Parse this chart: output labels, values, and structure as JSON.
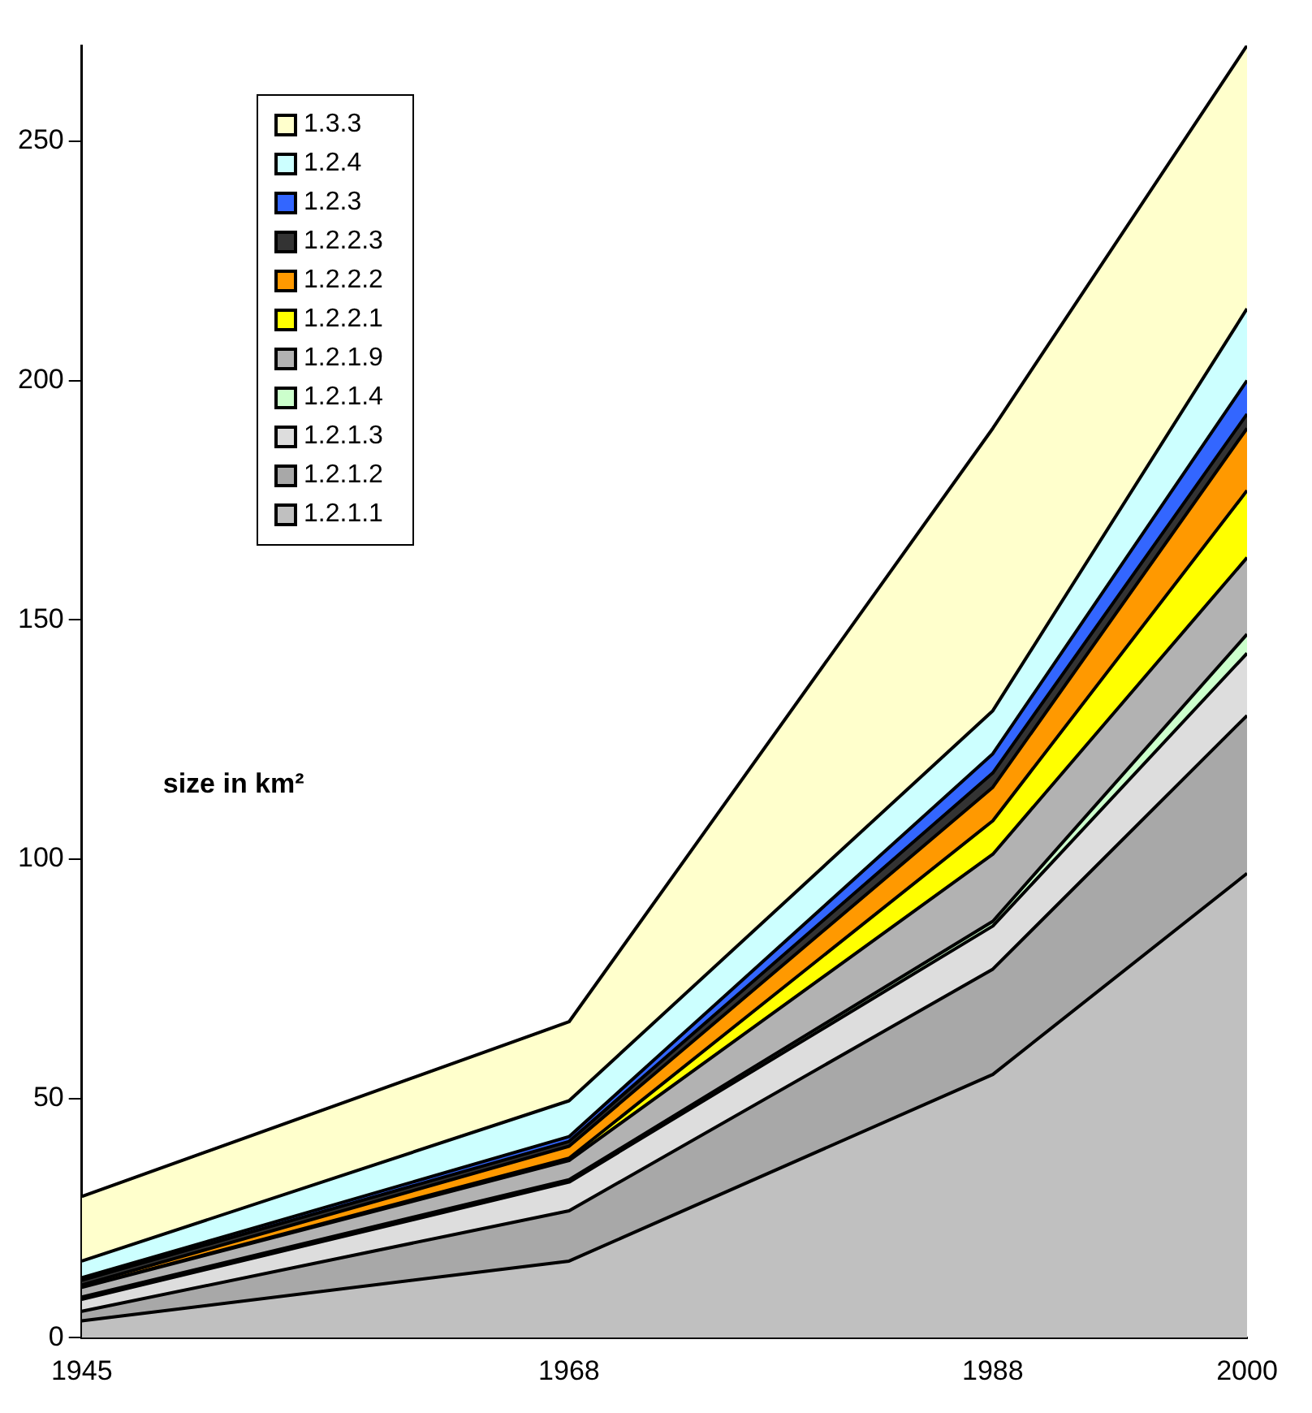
{
  "chart_data": {
    "type": "area",
    "stacked": true,
    "x": [
      1945,
      1968,
      1988,
      2000
    ],
    "xlim": [
      1945,
      2000
    ],
    "xticks": [
      1945,
      1968,
      1988,
      2000
    ],
    "ylim": [
      0,
      270
    ],
    "yticks": [
      0,
      50,
      100,
      150,
      200,
      250
    ],
    "grid": false,
    "legend": "top left",
    "annotations": [
      "size in km²"
    ],
    "series": [
      {
        "name": "1.2.1.1",
        "color": "#c0c0c0",
        "values": [
          3.5,
          16,
          55,
          97
        ]
      },
      {
        "name": "1.2.1.2",
        "color": "#a8a8a8",
        "values": [
          2,
          10.5,
          22,
          33
        ]
      },
      {
        "name": "1.2.1.3",
        "color": "#dddddd",
        "values": [
          2.5,
          6,
          9,
          13
        ]
      },
      {
        "name": "1.2.1.4",
        "color": "#ccffcc",
        "values": [
          0.5,
          0.5,
          1,
          4
        ]
      },
      {
        "name": "1.2.1.9",
        "color": "#b2b2b2",
        "values": [
          2,
          4,
          14,
          16
        ]
      },
      {
        "name": "1.2.2.1",
        "color": "#ffff00",
        "values": [
          0,
          0.5,
          7,
          14
        ]
      },
      {
        "name": "1.2.2.2",
        "color": "#ff9900",
        "values": [
          0.5,
          2.5,
          7,
          13
        ]
      },
      {
        "name": "1.2.2.3",
        "color": "#333333",
        "values": [
          1,
          1,
          3,
          3
        ]
      },
      {
        "name": "1.2.3",
        "color": "#3366ff",
        "values": [
          0.5,
          1,
          4,
          7
        ]
      },
      {
        "name": "1.2.4",
        "color": "#ccffff",
        "values": [
          3.5,
          7.5,
          9,
          15
        ]
      },
      {
        "name": "1.3.3",
        "color": "#ffffcc",
        "values": [
          13.5,
          16.5,
          59,
          55
        ]
      }
    ]
  }
}
